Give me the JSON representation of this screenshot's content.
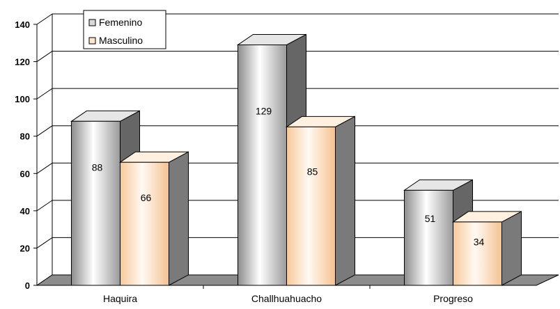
{
  "chart_data": {
    "type": "bar",
    "categories": [
      "Haquira",
      "Challhuahuacho",
      "Progreso"
    ],
    "series": [
      {
        "name": "Femenino",
        "values": [
          88,
          129,
          51
        ],
        "color": "#d9d9d9"
      },
      {
        "name": "Masculino",
        "values": [
          66,
          85,
          34
        ],
        "color": "#ffe4cc"
      }
    ],
    "ylim": [
      0,
      140
    ],
    "yticks": [
      "0",
      "20",
      "40",
      "60",
      "80",
      "100",
      "120",
      "140"
    ],
    "data_labels": [
      [
        "88",
        "129",
        "51"
      ],
      [
        "66",
        "85",
        "34"
      ]
    ],
    "grid": true,
    "legend_position": "top-left",
    "style": "3d-column"
  }
}
